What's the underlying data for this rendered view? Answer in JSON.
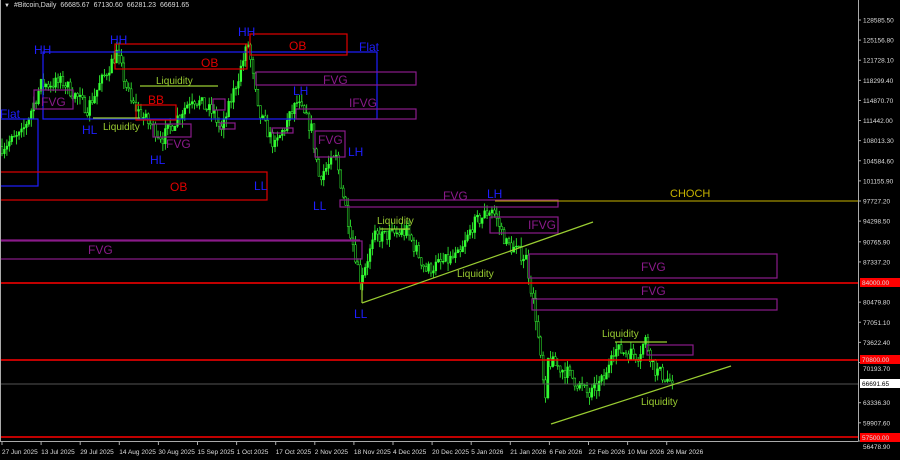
{
  "header": {
    "symbol": "#Bitcoin,Daily",
    "open": "66685.67",
    "high": "67130.60",
    "low": "66281.23",
    "close": "66691.65"
  },
  "price_ticks": [
    "128585.50",
    "125156.80",
    "121728.10",
    "118299.40",
    "114870.70",
    "111442.00",
    "108013.30",
    "104584.60",
    "101155.90",
    "97727.20",
    "94298.50",
    "90765.90",
    "87337.20",
    "80479.80",
    "77051.10",
    "73622.40",
    "70193.70",
    "63336.30",
    "59907.60",
    "56478.90"
  ],
  "date_ticks": [
    "27 Jun 2025",
    "13 Jul 2025",
    "29 Jul 2025",
    "14 Aug 2025",
    "30 Aug 2025",
    "15 Sep 2025",
    "1 Oct 2025",
    "17 Oct 2025",
    "2 Nov 2025",
    "18 Nov 2025",
    "4 Dec 2025",
    "20 Dec 2025",
    "5 Jan 2026",
    "21 Jan 2026",
    "6 Feb 2026",
    "22 Feb 2026",
    "10 Mar 2026",
    "26 Mar 2026"
  ],
  "levels": {
    "l1": "84000.00",
    "l2": "70800.00",
    "current": "66691.65",
    "l3": "57500.00"
  },
  "colors": {
    "bull": "#33ff33",
    "structure": "#1e1eff",
    "ob": "#e00000",
    "fvg": "#8a1a8a",
    "liquidity": "#9acd32",
    "choch": "#c8b400",
    "level": "#ff0000"
  },
  "annotations": {
    "hh1": "HH",
    "hh2": "HH",
    "hh3": "HH",
    "hl1": "HL",
    "hl2": "HL",
    "lh1": "LH",
    "lh2": "LH",
    "lh3": "LH",
    "ll1": "LL",
    "ll2": "LL",
    "ll3": "LL",
    "flat1": "Flat",
    "flat2": "Flat",
    "ob1": "OB",
    "ob2": "OB",
    "ob3": "OB",
    "bb": "BB",
    "fvg1": "FVG",
    "fvg2": "FVG",
    "fvg3": "FVG",
    "fvg4": "FVG",
    "fvg5": "FVG",
    "fvg6": "FVG",
    "fvg7": "FVG",
    "fvg8": "FVG",
    "ifvg1": "IFVG",
    "ifvg2": "IFVG",
    "liq1": "Liquidity",
    "liq2": "Liquidity",
    "liq3": "Liquidity",
    "liq4": "Liquidity",
    "liq5": "Liquidity",
    "liq6": "Liquidity",
    "choch": "CHOCH"
  },
  "chart_data": {
    "type": "candlestick",
    "title": "#Bitcoin,Daily",
    "ylim": [
      56478.9,
      128585.5
    ],
    "xlim": [
      "27 Jun 2025",
      "29 Mar 2026"
    ],
    "grid": false,
    "horizontal_levels": [
      84000,
      70800,
      57500,
      97727.2
    ],
    "last_price": 66691.65,
    "close_path": [
      [
        "2025-06-27",
        107000
      ],
      [
        "2025-07-05",
        109000
      ],
      [
        "2025-07-13",
        117500
      ],
      [
        "2025-07-22",
        118000
      ],
      [
        "2025-08-01",
        113500
      ],
      [
        "2025-08-13",
        123000
      ],
      [
        "2025-08-19",
        114500
      ],
      [
        "2025-08-25",
        111500
      ],
      [
        "2025-09-01",
        108500
      ],
      [
        "2025-09-13",
        115500
      ],
      [
        "2025-09-22",
        112500
      ],
      [
        "2025-09-25",
        109500
      ],
      [
        "2025-10-06",
        124500
      ],
      [
        "2025-10-10",
        113000
      ],
      [
        "2025-10-17",
        107000
      ],
      [
        "2025-10-26",
        114500
      ],
      [
        "2025-11-01",
        110000
      ],
      [
        "2025-11-04",
        102000
      ],
      [
        "2025-11-11",
        105000
      ],
      [
        "2025-11-17",
        92500
      ],
      [
        "2025-11-21",
        84500
      ],
      [
        "2025-11-27",
        91500
      ],
      [
        "2025-12-10",
        92500
      ],
      [
        "2025-12-18",
        86000
      ],
      [
        "2026-01-01",
        88500
      ],
      [
        "2026-01-06",
        93500
      ],
      [
        "2026-01-14",
        96500
      ],
      [
        "2026-01-20",
        90500
      ],
      [
        "2026-01-28",
        88000
      ],
      [
        "2026-02-01",
        78000
      ],
      [
        "2026-02-05",
        63000
      ],
      [
        "2026-02-06",
        70500
      ],
      [
        "2026-02-14",
        68500
      ],
      [
        "2026-02-23",
        64500
      ],
      [
        "2026-03-02",
        68000
      ],
      [
        "2026-03-04",
        72500
      ],
      [
        "2026-03-15",
        71500
      ],
      [
        "2026-03-18",
        74000
      ],
      [
        "2026-03-22",
        69000
      ],
      [
        "2026-03-29",
        66691.65
      ]
    ]
  }
}
